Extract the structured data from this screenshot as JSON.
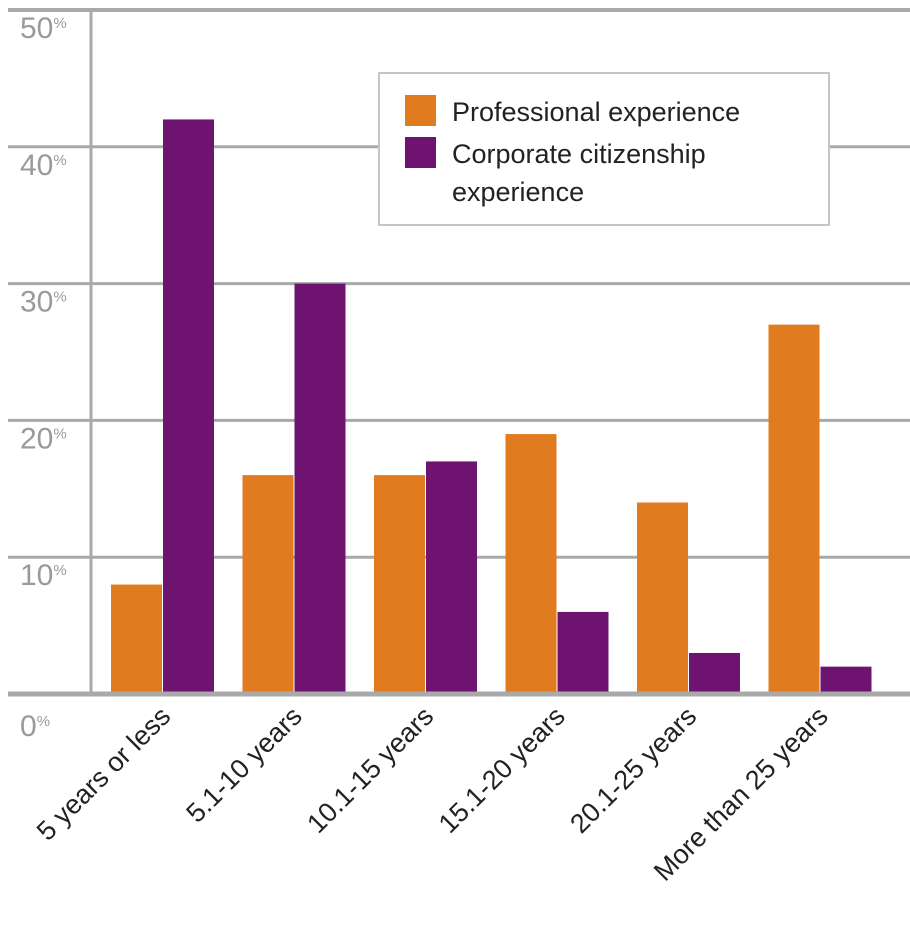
{
  "chart_data": {
    "type": "bar",
    "categories": [
      "5 years or less",
      "5.1-10 years",
      "10.1-15 years",
      "15.1-20 years",
      "20.1-25 years",
      "More than 25 years"
    ],
    "series": [
      {
        "name": "Professional experience",
        "color": "#e07b1f",
        "values": [
          8,
          16,
          16,
          19,
          14,
          27
        ]
      },
      {
        "name": "Corporate citizenship experience",
        "color": "#6e1470",
        "values": [
          42,
          30,
          17,
          6,
          3,
          2
        ]
      }
    ],
    "yticks": [
      {
        "value": 0,
        "num": "0",
        "unit": "%"
      },
      {
        "value": 10,
        "num": "10",
        "unit": "%"
      },
      {
        "value": 20,
        "num": "20",
        "unit": "%"
      },
      {
        "value": 30,
        "num": "30",
        "unit": "%"
      },
      {
        "value": 40,
        "num": "40",
        "unit": "%"
      },
      {
        "value": 50,
        "num": "50",
        "unit": "%"
      }
    ],
    "legend": [
      {
        "lines": [
          "Professional experience"
        ]
      },
      {
        "lines": [
          "Corporate citizenship",
          "experience"
        ]
      }
    ],
    "ylim": [
      0,
      50
    ],
    "grid": true,
    "legend_position": "top-right",
    "title": "",
    "xlabel": "",
    "ylabel": ""
  }
}
